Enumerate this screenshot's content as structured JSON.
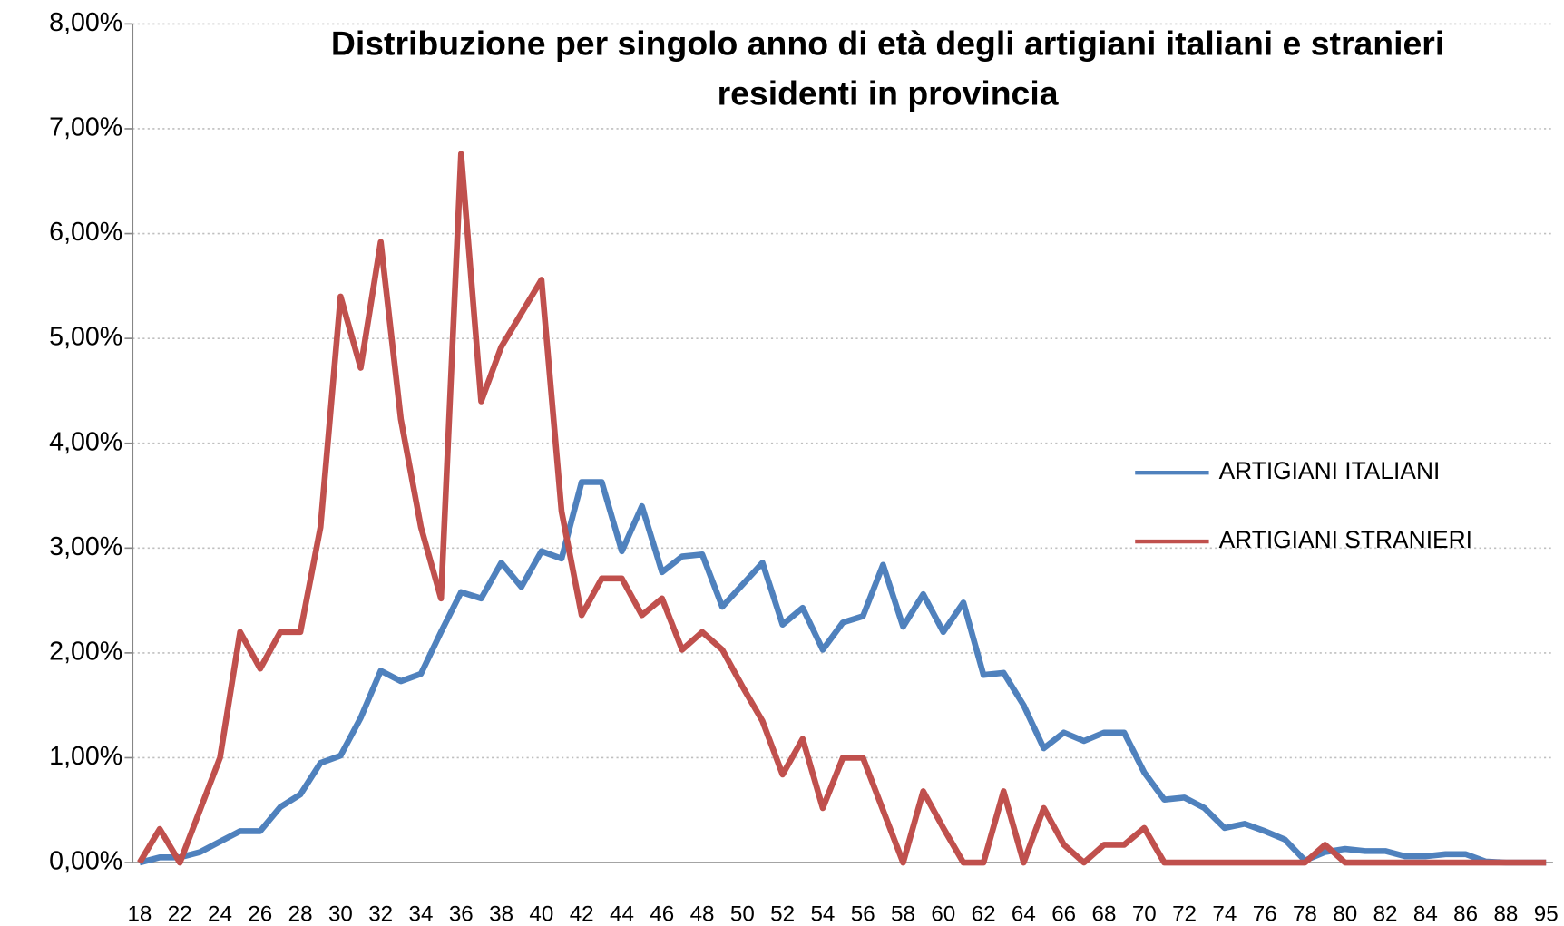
{
  "chart_data": {
    "type": "line",
    "title": [
      "Distribuzione per singolo anno di età degli artigiani italiani e stranieri",
      "residenti in provincia"
    ],
    "categories": [
      "18",
      null,
      "22",
      null,
      "24",
      null,
      "26",
      null,
      "28",
      null,
      "30",
      null,
      "32",
      null,
      "34",
      null,
      "36",
      null,
      "38",
      null,
      "40",
      null,
      "42",
      null,
      "44",
      null,
      "46",
      null,
      "48",
      null,
      "50",
      null,
      "52",
      null,
      "54",
      null,
      "56",
      null,
      "58",
      null,
      "60",
      null,
      "62",
      null,
      "64",
      null,
      "66",
      null,
      "68",
      null,
      "70",
      null,
      "72",
      null,
      "74",
      null,
      "76",
      null,
      "78",
      null,
      "80",
      null,
      "82",
      null,
      "84",
      null,
      "86",
      null,
      "88",
      null,
      "95"
    ],
    "series": [
      {
        "name": "ARTIGIANI ITALIANI",
        "color": "#4f81bd",
        "values": [
          0,
          0.05,
          0.05,
          0.1,
          0.2,
          0.3,
          0.3,
          0.53,
          0.65,
          0.95,
          1.02,
          1.38,
          1.83,
          1.73,
          1.8,
          2.2,
          2.58,
          2.52,
          2.86,
          2.63,
          2.97,
          2.9,
          3.63,
          3.63,
          2.97,
          3.4,
          2.77,
          2.92,
          2.94,
          2.44,
          2.65,
          2.86,
          2.27,
          2.43,
          2.03,
          2.29,
          2.35,
          2.84,
          2.25,
          2.56,
          2.2,
          2.48,
          1.79,
          1.81,
          1.5,
          1.09,
          1.24,
          1.16,
          1.24,
          1.24,
          0.86,
          0.6,
          0.62,
          0.52,
          0.33,
          0.37,
          0.3,
          0.22,
          0.02,
          0.1,
          0.13,
          0.11,
          0.11,
          0.06,
          0.06,
          0.08,
          0.08,
          0.01,
          0,
          0,
          0
        ]
      },
      {
        "name": "ARTIGIANI STRANIERI",
        "color": "#c0504d",
        "values": [
          0,
          0.32,
          0,
          0.5,
          1.0,
          2.2,
          1.85,
          2.2,
          2.2,
          3.2,
          5.4,
          4.72,
          5.92,
          4.23,
          3.2,
          2.52,
          6.76,
          4.4,
          4.92,
          5.24,
          5.56,
          3.35,
          2.36,
          2.71,
          2.71,
          2.36,
          2.52,
          2.03,
          2.2,
          2.03,
          1.68,
          1.35,
          0.84,
          1.18,
          0.52,
          1.0,
          1.0,
          0.5,
          0,
          0.68,
          0.33,
          0,
          0,
          0.68,
          0,
          0.52,
          0.17,
          0,
          0.17,
          0.17,
          0.33,
          0,
          0,
          0,
          0,
          0,
          0,
          0,
          0,
          0.17,
          0,
          0,
          0,
          0,
          0,
          0,
          0,
          0,
          0,
          0,
          0
        ]
      }
    ],
    "ylim": [
      0,
      8
    ],
    "yticks": [
      {
        "value": 0,
        "label": "0,00%"
      },
      {
        "value": 1,
        "label": "1,00%"
      },
      {
        "value": 2,
        "label": "2,00%"
      },
      {
        "value": 3,
        "label": "3,00%"
      },
      {
        "value": 4,
        "label": "4,00%"
      },
      {
        "value": 5,
        "label": "5,00%"
      },
      {
        "value": 6,
        "label": "6,00%"
      },
      {
        "value": 7,
        "label": "7,00%"
      },
      {
        "value": 8,
        "label": "8,00%"
      }
    ],
    "grid": true,
    "legend": "right"
  }
}
